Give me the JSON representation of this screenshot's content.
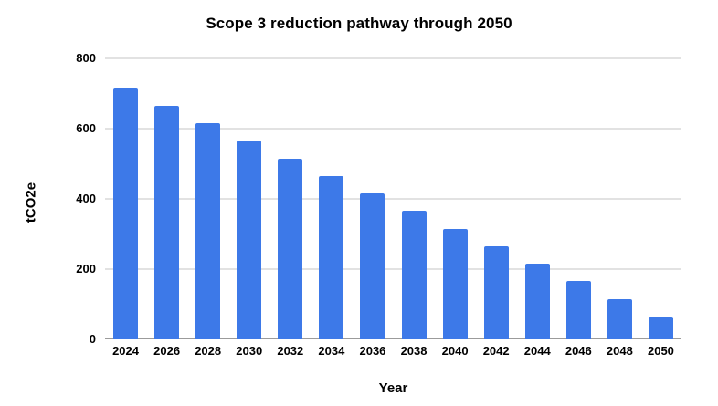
{
  "chart_data": {
    "type": "bar",
    "title": "Scope 3 reduction pathway through 2050",
    "xlabel": "Year",
    "ylabel": "tCO2e",
    "categories": [
      "2024",
      "2026",
      "2028",
      "2030",
      "2032",
      "2034",
      "2036",
      "2038",
      "2040",
      "2042",
      "2044",
      "2046",
      "2048",
      "2050"
    ],
    "values": [
      715,
      665,
      615,
      565,
      515,
      465,
      415,
      365,
      315,
      265,
      215,
      165,
      115,
      65
    ],
    "ylim": [
      0,
      800
    ],
    "yticks": [
      0,
      200,
      400,
      600,
      800
    ],
    "grid": true,
    "legend": "none",
    "colors": {
      "bar": "#3d79e8",
      "gridline": "#e2e2e2",
      "axis_line": "#9b9b9b",
      "text": "#000000",
      "background": "#ffffff"
    }
  }
}
